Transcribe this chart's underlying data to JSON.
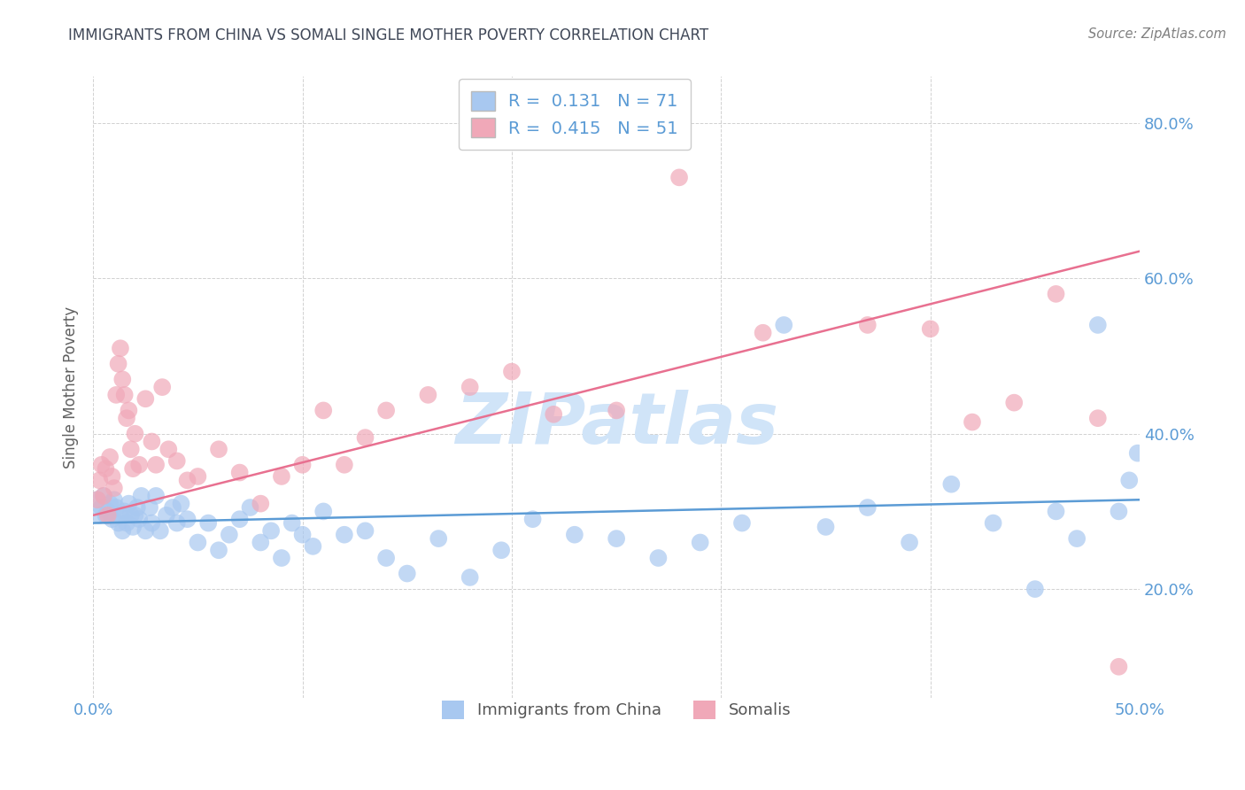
{
  "title": "IMMIGRANTS FROM CHINA VS SOMALI SINGLE MOTHER POVERTY CORRELATION CHART",
  "source": "Source: ZipAtlas.com",
  "ylabel": "Single Mother Poverty",
  "xlim": [
    0.0,
    0.5
  ],
  "ylim": [
    0.06,
    0.86
  ],
  "xticks": [
    0.0,
    0.5
  ],
  "yticks": [
    0.2,
    0.4,
    0.6,
    0.8
  ],
  "china_R": 0.131,
  "china_N": 71,
  "somali_R": 0.415,
  "somali_N": 51,
  "china_color": "#A8C8F0",
  "somali_color": "#F0A8B8",
  "china_line_color": "#5B9BD5",
  "somali_line_color": "#E87090",
  "title_color": "#404858",
  "source_color": "#808080",
  "ylabel_color": "#606060",
  "background_color": "#FFFFFF",
  "grid_color": "#CCCCCC",
  "tick_color": "#5B9BD5",
  "watermark": "ZIPatlas",
  "watermark_color": "#D0E4F8",
  "legend_label_color": "#5B9BD5",
  "china_line_y0": 0.285,
  "china_line_y1": 0.315,
  "somali_line_y0": 0.295,
  "somali_line_y1": 0.635,
  "china_x": [
    0.002,
    0.003,
    0.004,
    0.005,
    0.006,
    0.007,
    0.008,
    0.009,
    0.01,
    0.011,
    0.012,
    0.013,
    0.014,
    0.015,
    0.016,
    0.017,
    0.018,
    0.019,
    0.02,
    0.021,
    0.022,
    0.023,
    0.025,
    0.027,
    0.028,
    0.03,
    0.032,
    0.035,
    0.038,
    0.04,
    0.042,
    0.045,
    0.05,
    0.055,
    0.06,
    0.065,
    0.07,
    0.075,
    0.08,
    0.085,
    0.09,
    0.095,
    0.1,
    0.105,
    0.11,
    0.12,
    0.13,
    0.14,
    0.15,
    0.165,
    0.18,
    0.195,
    0.21,
    0.23,
    0.25,
    0.27,
    0.29,
    0.31,
    0.33,
    0.35,
    0.37,
    0.39,
    0.41,
    0.43,
    0.45,
    0.46,
    0.47,
    0.48,
    0.49,
    0.495,
    0.499
  ],
  "china_y": [
    0.315,
    0.295,
    0.305,
    0.32,
    0.295,
    0.3,
    0.31,
    0.29,
    0.315,
    0.305,
    0.285,
    0.295,
    0.275,
    0.3,
    0.285,
    0.31,
    0.295,
    0.28,
    0.295,
    0.305,
    0.29,
    0.32,
    0.275,
    0.305,
    0.285,
    0.32,
    0.275,
    0.295,
    0.305,
    0.285,
    0.31,
    0.29,
    0.26,
    0.285,
    0.25,
    0.27,
    0.29,
    0.305,
    0.26,
    0.275,
    0.24,
    0.285,
    0.27,
    0.255,
    0.3,
    0.27,
    0.275,
    0.24,
    0.22,
    0.265,
    0.215,
    0.25,
    0.29,
    0.27,
    0.265,
    0.24,
    0.26,
    0.285,
    0.54,
    0.28,
    0.305,
    0.26,
    0.335,
    0.285,
    0.2,
    0.3,
    0.265,
    0.54,
    0.3,
    0.34,
    0.375
  ],
  "somali_x": [
    0.002,
    0.003,
    0.004,
    0.005,
    0.006,
    0.007,
    0.008,
    0.009,
    0.01,
    0.011,
    0.012,
    0.013,
    0.014,
    0.015,
    0.016,
    0.017,
    0.018,
    0.019,
    0.02,
    0.022,
    0.025,
    0.028,
    0.03,
    0.033,
    0.036,
    0.04,
    0.045,
    0.05,
    0.06,
    0.07,
    0.08,
    0.09,
    0.1,
    0.11,
    0.12,
    0.13,
    0.14,
    0.16,
    0.18,
    0.2,
    0.22,
    0.25,
    0.28,
    0.32,
    0.37,
    0.4,
    0.42,
    0.44,
    0.46,
    0.48,
    0.49
  ],
  "somali_y": [
    0.315,
    0.34,
    0.36,
    0.32,
    0.355,
    0.295,
    0.37,
    0.345,
    0.33,
    0.45,
    0.49,
    0.51,
    0.47,
    0.45,
    0.42,
    0.43,
    0.38,
    0.355,
    0.4,
    0.36,
    0.445,
    0.39,
    0.36,
    0.46,
    0.38,
    0.365,
    0.34,
    0.345,
    0.38,
    0.35,
    0.31,
    0.345,
    0.36,
    0.43,
    0.36,
    0.395,
    0.43,
    0.45,
    0.46,
    0.48,
    0.425,
    0.43,
    0.73,
    0.53,
    0.54,
    0.535,
    0.415,
    0.44,
    0.58,
    0.42,
    0.1
  ]
}
